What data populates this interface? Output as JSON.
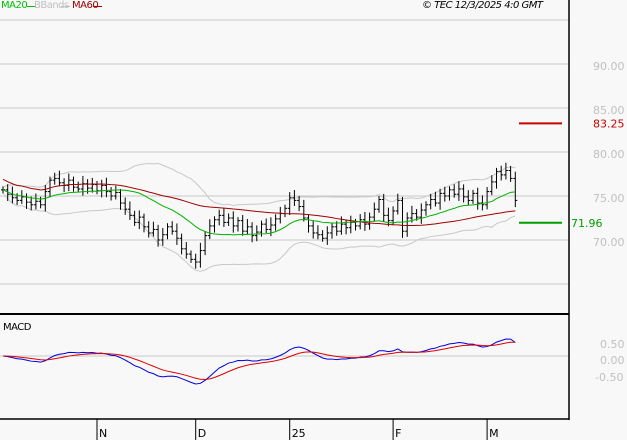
{
  "legend": {
    "ma20": "MA20",
    "bbands": "BBands",
    "ma60": "MA60"
  },
  "copyright": "© TEC 12/3/2025 4:0 GMT",
  "macd_label": "MACD",
  "colors": {
    "ma20": "#00b000",
    "bbands": "#c8c8c8",
    "ma60": "#a00000",
    "macd": "#0000dd",
    "signal": "#dd0000",
    "bars": "#000000"
  },
  "chart_data": {
    "type": "line",
    "title": "",
    "price_axis": {
      "ticks": [
        90,
        85,
        80,
        75,
        70
      ],
      "tick_labels": [
        "90.00",
        "85.00",
        "80.00",
        "75.00",
        "70.00"
      ],
      "ylim": [
        65,
        95
      ]
    },
    "markers": [
      {
        "label": "83.25",
        "value": 83.25,
        "color": "#cc0000"
      },
      {
        "label": "71.96",
        "value": 71.96,
        "color": "#00a000"
      }
    ],
    "macd_axis": {
      "ticks": [
        0.5,
        0,
        -0.5
      ],
      "tick_labels": [
        "0.50",
        "0.00",
        "-0.50"
      ]
    },
    "x_ticks": [
      {
        "label": "N",
        "index": 20
      },
      {
        "label": "D",
        "index": 41
      },
      {
        "label": "25",
        "index": 61
      },
      {
        "label": "F",
        "index": 83
      },
      {
        "label": "M",
        "index": 103
      }
    ],
    "closes": [
      75.7,
      75.2,
      74.8,
      74.5,
      74.9,
      74.3,
      74.0,
      74.4,
      74.0,
      75.5,
      76.8,
      77.0,
      76.5,
      76.2,
      76.8,
      76.0,
      75.8,
      76.4,
      75.9,
      76.3,
      75.6,
      76.2,
      75.5,
      75.0,
      75.4,
      74.2,
      73.5,
      72.8,
      72.0,
      72.6,
      71.5,
      70.8,
      71.2,
      70.0,
      70.6,
      71.5,
      71.0,
      70.2,
      69.0,
      68.4,
      67.8,
      67.5,
      68.8,
      70.5,
      71.6,
      72.3,
      72.8,
      72.0,
      72.5,
      71.6,
      72.2,
      71.0,
      71.5,
      70.5,
      70.9,
      71.8,
      71.2,
      71.7,
      72.4,
      73.0,
      73.6,
      74.8,
      74.5,
      73.8,
      72.5,
      71.6,
      70.8,
      70.6,
      70.2,
      70.8,
      71.5,
      71.0,
      71.8,
      71.4,
      72.0,
      71.6,
      72.3,
      71.8,
      72.6,
      73.5,
      74.6,
      72.8,
      72.2,
      73.3,
      74.5,
      71.0,
      72.5,
      73.0,
      72.6,
      73.4,
      74.0,
      74.6,
      74.2,
      75.3,
      75.0,
      75.7,
      75.2,
      75.8,
      74.9,
      74.5,
      75.3,
      74.2,
      74.0,
      75.5,
      76.6,
      77.8,
      77.4,
      77.9,
      77.0,
      74.5
    ]
  }
}
